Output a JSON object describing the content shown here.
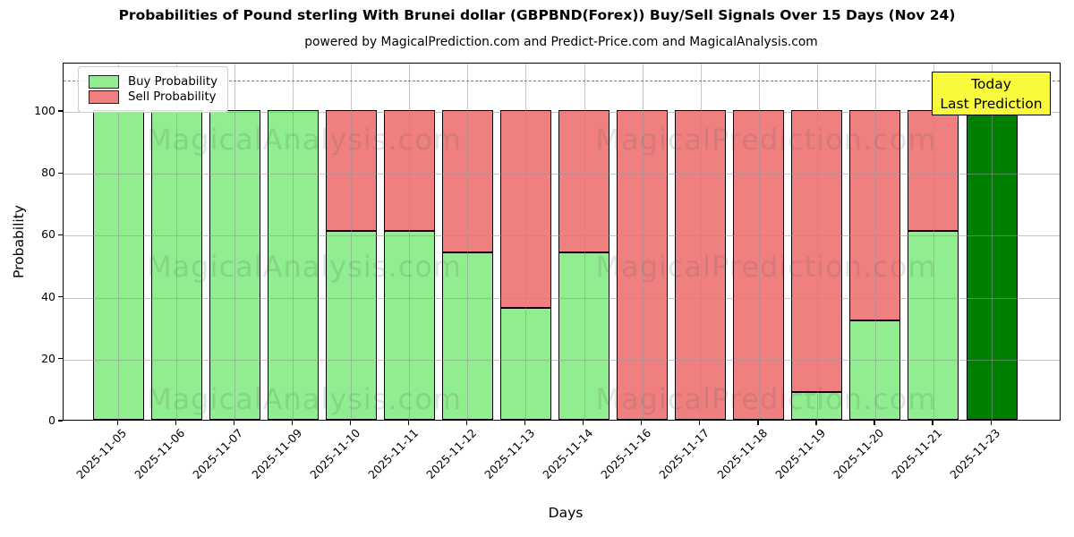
{
  "title": "Probabilities of Pound sterling With Brunei dollar (GBPBND(Forex)) Buy/Sell Signals Over 15 Days (Nov 24)",
  "subtitle": "powered by MagicalPrediction.com and Predict-Price.com and MagicalAnalysis.com",
  "axes": {
    "xlabel": "Days",
    "ylabel": "Probability",
    "yticks": [
      0,
      20,
      40,
      60,
      80,
      100
    ],
    "ymax": 115.6,
    "dashed_line_y": 110,
    "grid": true
  },
  "legend": {
    "position": "upper left",
    "items": [
      {
        "label": "Buy Probability",
        "color": "#90EE90"
      },
      {
        "label": "Sell Probability",
        "color": "#F08080"
      }
    ]
  },
  "annotation_box": {
    "lines": [
      "Today",
      "Last Prediction"
    ],
    "bg_color": "#FAFA3C"
  },
  "watermarks": {
    "texts": [
      "MagicalAnalysis.com",
      "MagicalPrediction.com"
    ],
    "rows": 3
  },
  "chart_data": {
    "type": "bar",
    "stacked": true,
    "title": "Probabilities of Pound sterling With Brunei dollar (GBPBND(Forex)) Buy/Sell Signals Over 15 Days (Nov 24)",
    "xlabel": "Days",
    "ylabel": "Probability",
    "ylim": [
      0,
      115.6
    ],
    "dashed_line_y": 110,
    "legend_position": "upper left",
    "categories": [
      "2025-11-05",
      "2025-11-06",
      "2025-11-07",
      "2025-11-09",
      "2025-11-10",
      "2025-11-11",
      "2025-11-12",
      "2025-11-13",
      "2025-11-14",
      "2025-11-16",
      "2025-11-17",
      "2025-11-18",
      "2025-11-19",
      "2025-11-20",
      "2025-11-21",
      "2025-11-23"
    ],
    "series": [
      {
        "name": "Buy Probability",
        "color": "#90EE90",
        "values": [
          100,
          100,
          100,
          100,
          61,
          61,
          54,
          36,
          54,
          0,
          0,
          0,
          9,
          32,
          61,
          100
        ]
      },
      {
        "name": "Sell Probability",
        "color": "#F08080",
        "values": [
          0,
          0,
          0,
          0,
          39,
          39,
          46,
          64,
          46,
          100,
          100,
          100,
          91,
          68,
          39,
          0
        ]
      }
    ],
    "today_index": 15,
    "today_color": "#008000",
    "edge_color": "#000000"
  }
}
